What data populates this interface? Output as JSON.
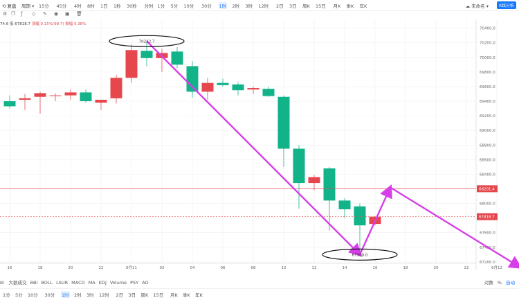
{
  "toolbar": {
    "brand": "复盘",
    "period_label": "周期",
    "intervals": [
      "15分",
      "45分",
      "4时",
      "8时",
      "1日",
      "1秒",
      "30秒",
      "分时",
      "1分",
      "5分",
      "10分",
      "30分",
      "1时",
      "2时",
      "3时",
      "12时",
      "2日",
      "3日",
      "周K",
      "15日",
      "月K",
      "季K",
      "年K"
    ],
    "active_interval": "1时",
    "user": "未命名",
    "layout_button": "K线分析"
  },
  "info_line": {
    "high": "74.6",
    "low": "67818.7",
    "change_text": "涨幅 0.15%(98.7)",
    "amplitude_text": "振幅 0.38%"
  },
  "indicators": [
    "大额成交",
    "BBI",
    "BOLL",
    "LSUR",
    "MACD",
    "MA",
    "KDJ",
    "Volume",
    "PSY",
    "AO"
  ],
  "axis_options": [
    "对数",
    "%",
    "自动"
  ],
  "active_axis_option": "自动",
  "bottom_intervals": [
    "1分",
    "5分",
    "10分",
    "30分",
    "1时",
    "2时",
    "3时",
    "12时",
    "2日",
    "3日",
    "周K",
    "15日",
    "月K",
    "季K",
    "年K"
  ],
  "active_bottom_interval": "1时",
  "colors": {
    "up": "#e5474d",
    "down": "#13b38a",
    "arrow": "#d63ee8",
    "price_line": "#e5474d",
    "current_tag": "#e5474d"
  },
  "chart_data": {
    "type": "candlestick",
    "ylim": [
      67180,
      70520
    ],
    "x_ticks": [
      {
        "label": "16",
        "x": 0
      },
      {
        "label": "18",
        "x": 4
      },
      {
        "label": "20",
        "x": 8
      },
      {
        "label": "22",
        "x": 12
      },
      {
        "label": "6月11",
        "x": 16
      },
      {
        "label": "02",
        "x": 20
      },
      {
        "label": "04",
        "x": 24
      },
      {
        "label": "06",
        "x": 28
      },
      {
        "label": "08",
        "x": 32
      },
      {
        "label": "10",
        "x": 36
      },
      {
        "label": "12",
        "x": 40
      },
      {
        "label": "14",
        "x": 44
      },
      {
        "label": "16",
        "x": 48
      },
      {
        "label": "18",
        "x": 52
      },
      {
        "label": "20",
        "x": 56
      },
      {
        "label": "22",
        "x": 60
      },
      {
        "label": "6月12",
        "x": 64
      }
    ],
    "y_ticks": [
      70400,
      70200,
      70000,
      69800,
      69600,
      69400,
      69200,
      69000,
      68800,
      68600,
      68400,
      68200,
      68000,
      67800,
      67600,
      67400,
      67200
    ],
    "candles": [
      {
        "x": 0,
        "o": 69400,
        "h": 69480,
        "l": 69300,
        "c": 69330
      },
      {
        "x": 2,
        "o": 69420,
        "h": 69500,
        "l": 69280,
        "c": 69440
      },
      {
        "x": 4,
        "o": 69460,
        "h": 69530,
        "l": 69230,
        "c": 69510
      },
      {
        "x": 6,
        "o": 69475,
        "h": 69510,
        "l": 69400,
        "c": 69480
      },
      {
        "x": 8,
        "o": 69480,
        "h": 69560,
        "l": 69420,
        "c": 69520
      },
      {
        "x": 10,
        "o": 69520,
        "h": 69560,
        "l": 69380,
        "c": 69400
      },
      {
        "x": 12,
        "o": 69380,
        "h": 69420,
        "l": 69280,
        "c": 69420
      },
      {
        "x": 14,
        "o": 69440,
        "h": 69760,
        "l": 69370,
        "c": 69720
      },
      {
        "x": 16,
        "o": 69720,
        "h": 70180,
        "l": 69650,
        "c": 70100
      },
      {
        "x": 18,
        "o": 70090,
        "h": 70222.7,
        "l": 69880,
        "c": 69990
      },
      {
        "x": 20,
        "o": 69990,
        "h": 70120,
        "l": 69800,
        "c": 70060
      },
      {
        "x": 22,
        "o": 70080,
        "h": 70140,
        "l": 69850,
        "c": 69900
      },
      {
        "x": 24,
        "o": 69880,
        "h": 69950,
        "l": 69450,
        "c": 69530
      },
      {
        "x": 26,
        "o": 69530,
        "h": 69720,
        "l": 69420,
        "c": 69650
      },
      {
        "x": 28,
        "o": 69650,
        "h": 69710,
        "l": 69600,
        "c": 69620
      },
      {
        "x": 30,
        "o": 69630,
        "h": 69660,
        "l": 69480,
        "c": 69550
      },
      {
        "x": 32,
        "o": 69560,
        "h": 69600,
        "l": 69500,
        "c": 69580
      },
      {
        "x": 34,
        "o": 69570,
        "h": 69600,
        "l": 69460,
        "c": 69470
      },
      {
        "x": 36,
        "o": 69460,
        "h": 69480,
        "l": 68500,
        "c": 68750
      },
      {
        "x": 38,
        "o": 68750,
        "h": 68800,
        "l": 67930,
        "c": 68280
      },
      {
        "x": 40,
        "o": 68280,
        "h": 68390,
        "l": 68180,
        "c": 68360
      },
      {
        "x": 42,
        "o": 68480,
        "h": 68500,
        "l": 67630,
        "c": 68040
      },
      {
        "x": 44,
        "o": 68040,
        "h": 68070,
        "l": 67800,
        "c": 67920
      },
      {
        "x": 46,
        "o": 67960,
        "h": 68000,
        "l": 67300,
        "c": 67700
      },
      {
        "x": 48,
        "o": 67720,
        "h": 67830,
        "l": 67700,
        "c": 67818.7
      }
    ],
    "h_lines": [
      {
        "price": 68201.4,
        "style": "solid",
        "label": "68201.4"
      },
      {
        "price": 67818.7,
        "style": "dashed",
        "label": "67818.7"
      }
    ],
    "annotations": [
      {
        "type": "ellipse",
        "x": 18,
        "price": 70222.7,
        "label": "70222.7"
      },
      {
        "type": "ellipse",
        "x": 46,
        "price": 67300.0,
        "label": "67300.0"
      }
    ],
    "arrows": [
      {
        "from": {
          "x": 18,
          "price": 70222.7
        },
        "to": {
          "x": 46,
          "price": 67300
        }
      },
      {
        "from": {
          "x": 46,
          "price": 67300
        },
        "to": {
          "x": 50,
          "price": 68220
        }
      },
      {
        "from": {
          "x": 50,
          "price": 68220
        },
        "to": {
          "x": 67,
          "price": 67130
        }
      }
    ]
  }
}
